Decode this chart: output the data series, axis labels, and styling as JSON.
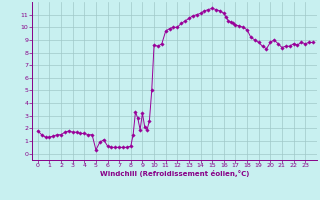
{
  "xlabel": "Windchill (Refroidissement éolien,°C)",
  "background_color": "#c8f0f0",
  "grid_color": "#a0c8c8",
  "line_color": "#990099",
  "marker_color": "#990099",
  "xlim": [
    -0.5,
    24
  ],
  "ylim": [
    -0.5,
    12
  ],
  "xticks": [
    0,
    1,
    2,
    3,
    4,
    5,
    6,
    7,
    8,
    9,
    10,
    11,
    12,
    13,
    14,
    15,
    16,
    17,
    18,
    19,
    20,
    21,
    22,
    23
  ],
  "yticks": [
    0,
    1,
    2,
    3,
    4,
    5,
    6,
    7,
    8,
    9,
    10,
    11
  ],
  "x": [
    0,
    0.33,
    0.67,
    1,
    1.33,
    1.67,
    2,
    2.33,
    2.67,
    3,
    3.33,
    3.67,
    4,
    4.33,
    4.67,
    5,
    5.33,
    5.67,
    6,
    6.33,
    6.67,
    7,
    7.33,
    7.67,
    8,
    8.2,
    8.4,
    8.6,
    8.8,
    9.0,
    9.2,
    9.4,
    9.6,
    9.8,
    10,
    10.33,
    10.67,
    11,
    11.33,
    11.67,
    12,
    12.33,
    12.67,
    13,
    13.33,
    13.67,
    14,
    14.33,
    14.67,
    15,
    15.33,
    15.67,
    16,
    16.2,
    16.4,
    16.6,
    16.8,
    17,
    17.33,
    17.67,
    18,
    18.33,
    18.67,
    19,
    19.33,
    19.67,
    20,
    20.33,
    20.67,
    21,
    21.33,
    21.67,
    22,
    22.33,
    22.67,
    23,
    23.33,
    23.67
  ],
  "y": [
    1.8,
    1.5,
    1.3,
    1.3,
    1.4,
    1.5,
    1.5,
    1.7,
    1.8,
    1.7,
    1.7,
    1.6,
    1.6,
    1.5,
    1.5,
    0.3,
    0.9,
    1.1,
    0.6,
    0.5,
    0.5,
    0.5,
    0.5,
    0.5,
    0.6,
    1.5,
    3.3,
    2.8,
    1.9,
    3.2,
    2.1,
    1.9,
    2.6,
    5.0,
    8.6,
    8.5,
    8.7,
    9.7,
    9.9,
    10.0,
    10.0,
    10.3,
    10.5,
    10.7,
    10.9,
    11.0,
    11.1,
    11.3,
    11.4,
    11.5,
    11.4,
    11.3,
    11.1,
    10.8,
    10.5,
    10.4,
    10.3,
    10.2,
    10.1,
    10.0,
    9.8,
    9.2,
    9.0,
    8.8,
    8.5,
    8.3,
    8.8,
    9.0,
    8.7,
    8.4,
    8.5,
    8.5,
    8.7,
    8.6,
    8.8,
    8.7,
    8.8,
    8.8
  ]
}
